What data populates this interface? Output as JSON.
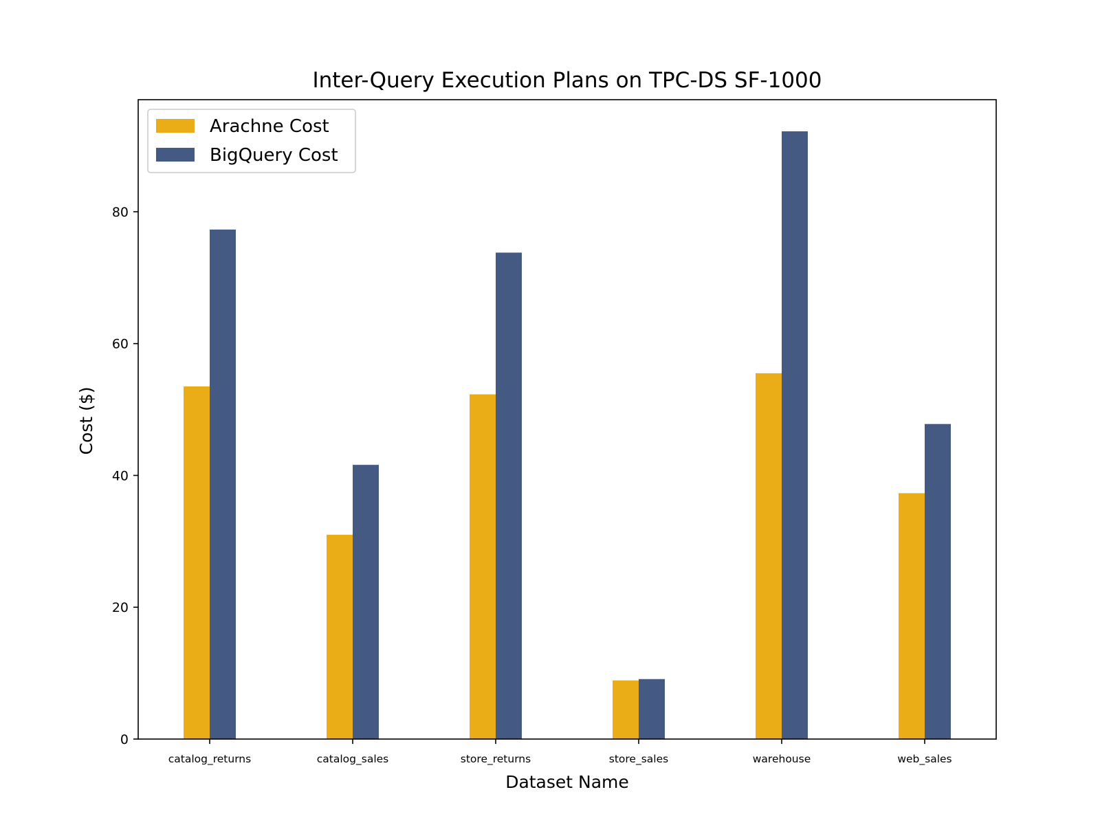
{
  "chart_data": {
    "type": "bar",
    "title": "Inter-Query Execution Plans on TPC-DS SF-1000",
    "xlabel": "Dataset Name",
    "ylabel": "Cost ($)",
    "categories": [
      "catalog_returns",
      "catalog_sales",
      "store_returns",
      "store_sales",
      "warehouse",
      "web_sales"
    ],
    "series": [
      {
        "name": "Arachne Cost",
        "color": "#EAAD18",
        "values": [
          53.5,
          31.0,
          52.3,
          8.9,
          55.5,
          37.3
        ]
      },
      {
        "name": "BigQuery Cost",
        "color": "#455A83",
        "values": [
          77.3,
          41.6,
          73.8,
          9.1,
          92.2,
          47.8
        ]
      }
    ],
    "ylim": [
      0,
      97
    ],
    "yticks": [
      0,
      20,
      40,
      60,
      80
    ],
    "grid": false,
    "legend_position": "top-left"
  }
}
